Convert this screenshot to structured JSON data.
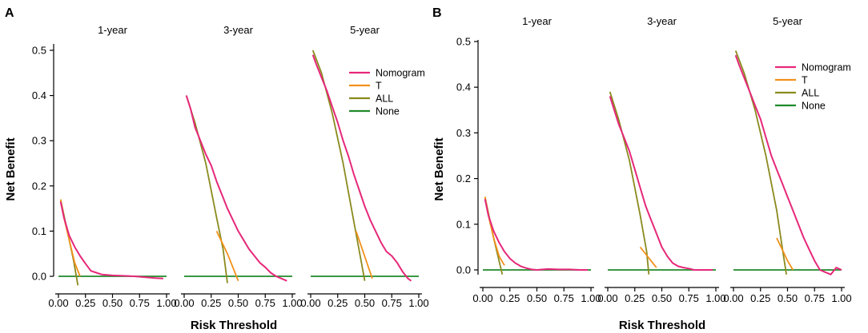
{
  "chart_data": [
    {
      "type": "line",
      "panel_label": "A",
      "ylabel": "Net Benefit",
      "xlabel": "Risk Threshold",
      "ylim": [
        0,
        0.5
      ],
      "xlim": [
        0,
        1
      ],
      "yticks": [
        "0.0",
        "0.1",
        "0.2",
        "0.3",
        "0.4",
        "0.5"
      ],
      "xticks": [
        "0.00",
        "0.25",
        "0.50",
        "0.75",
        "1.00"
      ],
      "legend": [
        "Nomogram",
        "T",
        "ALL",
        "None"
      ],
      "legend_position": "top-right",
      "facets": [
        {
          "title": "1-year",
          "series": [
            {
              "name": "Nomogram",
              "x": [
                0.02,
                0.05,
                0.1,
                0.15,
                0.2,
                0.25,
                0.3,
                0.35,
                0.4,
                0.5,
                0.6,
                0.7,
                0.8,
                0.9,
                0.97
              ],
              "y": [
                0.165,
                0.13,
                0.09,
                0.065,
                0.045,
                0.028,
                0.012,
                0.008,
                0.004,
                0.002,
                0.001,
                0.0,
                -0.002,
                -0.004,
                -0.005
              ]
            },
            {
              "name": "T",
              "x": [
                0.02,
                0.05,
                0.1,
                0.15,
                0.2
              ],
              "y": [
                0.17,
                0.13,
                0.08,
                0.03,
                0.0
              ]
            },
            {
              "name": "ALL",
              "x": [
                0.02,
                0.06,
                0.1,
                0.14,
                0.18
              ],
              "y": [
                0.17,
                0.125,
                0.08,
                0.035,
                -0.02
              ]
            },
            {
              "name": "None",
              "x": [
                0.0,
                1.0
              ],
              "y": [
                0.0,
                0.0
              ]
            }
          ]
        },
        {
          "title": "3-year",
          "series": [
            {
              "name": "Nomogram",
              "x": [
                0.02,
                0.06,
                0.1,
                0.15,
                0.2,
                0.25,
                0.3,
                0.35,
                0.4,
                0.45,
                0.5,
                0.55,
                0.6,
                0.65,
                0.7,
                0.75,
                0.8,
                0.85,
                0.9,
                0.95
              ],
              "y": [
                0.4,
                0.37,
                0.33,
                0.3,
                0.27,
                0.245,
                0.21,
                0.18,
                0.15,
                0.125,
                0.1,
                0.08,
                0.06,
                0.045,
                0.03,
                0.02,
                0.008,
                0.0,
                -0.005,
                -0.01
              ]
            },
            {
              "name": "T",
              "x": [
                0.3,
                0.35,
                0.4,
                0.45,
                0.5
              ],
              "y": [
                0.1,
                0.075,
                0.05,
                0.02,
                -0.01
              ]
            },
            {
              "name": "ALL",
              "x": [
                0.02,
                0.1,
                0.2,
                0.3,
                0.36,
                0.4
              ],
              "y": [
                0.4,
                0.34,
                0.25,
                0.13,
                0.06,
                -0.015
              ]
            },
            {
              "name": "None",
              "x": [
                0.0,
                1.0
              ],
              "y": [
                0.0,
                0.0
              ]
            }
          ]
        },
        {
          "title": "5-year",
          "series": [
            {
              "name": "Nomogram",
              "x": [
                0.02,
                0.05,
                0.1,
                0.15,
                0.2,
                0.25,
                0.3,
                0.35,
                0.4,
                0.45,
                0.5,
                0.55,
                0.6,
                0.65,
                0.7,
                0.75,
                0.8,
                0.85,
                0.9,
                0.93
              ],
              "y": [
                0.49,
                0.47,
                0.44,
                0.41,
                0.375,
                0.34,
                0.3,
                0.265,
                0.225,
                0.19,
                0.155,
                0.125,
                0.1,
                0.075,
                0.055,
                0.045,
                0.03,
                0.01,
                -0.005,
                -0.01
              ]
            },
            {
              "name": "T",
              "x": [
                0.42,
                0.47,
                0.52,
                0.57
              ],
              "y": [
                0.1,
                0.065,
                0.03,
                -0.005
              ]
            },
            {
              "name": "ALL",
              "x": [
                0.02,
                0.1,
                0.2,
                0.3,
                0.4,
                0.47,
                0.5
              ],
              "y": [
                0.5,
                0.45,
                0.36,
                0.25,
                0.12,
                0.03,
                -0.01
              ]
            },
            {
              "name": "None",
              "x": [
                0.0,
                1.0
              ],
              "y": [
                0.0,
                0.0
              ]
            }
          ]
        }
      ]
    },
    {
      "type": "line",
      "panel_label": "B",
      "ylabel": "Net Benefit",
      "xlabel": "Risk Threshold",
      "ylim": [
        0,
        0.5
      ],
      "xlim": [
        0,
        1
      ],
      "yticks": [
        "0.0",
        "0.1",
        "0.2",
        "0.3",
        "0.4",
        "0.5"
      ],
      "xticks": [
        "0.00",
        "0.25",
        "0.50",
        "0.75",
        "1.00"
      ],
      "legend": [
        "Nomogram",
        "T",
        "ALL",
        "None"
      ],
      "legend_position": "top-right",
      "facets": [
        {
          "title": "1-year",
          "series": [
            {
              "name": "Nomogram",
              "x": [
                0.02,
                0.05,
                0.1,
                0.15,
                0.2,
                0.25,
                0.3,
                0.35,
                0.4,
                0.45,
                0.5,
                0.6,
                0.7,
                0.8,
                0.9,
                0.97
              ],
              "y": [
                0.155,
                0.12,
                0.085,
                0.06,
                0.04,
                0.025,
                0.015,
                0.008,
                0.004,
                0.001,
                0.0,
                0.002,
                0.001,
                0.001,
                0.0,
                0.0
              ]
            },
            {
              "name": "T",
              "x": [
                0.02,
                0.06,
                0.1,
                0.15,
                0.2
              ],
              "y": [
                0.16,
                0.11,
                0.07,
                0.03,
                0.01
              ]
            },
            {
              "name": "ALL",
              "x": [
                0.02,
                0.06,
                0.1,
                0.14,
                0.18
              ],
              "y": [
                0.16,
                0.115,
                0.07,
                0.03,
                -0.01
              ]
            },
            {
              "name": "None",
              "x": [
                0.0,
                1.0
              ],
              "y": [
                0.0,
                0.0
              ]
            }
          ]
        },
        {
          "title": "3-year",
          "series": [
            {
              "name": "Nomogram",
              "x": [
                0.02,
                0.06,
                0.1,
                0.15,
                0.2,
                0.25,
                0.3,
                0.35,
                0.4,
                0.45,
                0.5,
                0.55,
                0.6,
                0.65,
                0.7,
                0.75,
                0.8,
                0.9,
                0.97
              ],
              "y": [
                0.38,
                0.35,
                0.32,
                0.29,
                0.26,
                0.22,
                0.18,
                0.14,
                0.11,
                0.08,
                0.05,
                0.03,
                0.015,
                0.008,
                0.005,
                0.003,
                0.0,
                0.0,
                0.0
              ]
            },
            {
              "name": "T",
              "x": [
                0.3,
                0.35,
                0.4,
                0.45
              ],
              "y": [
                0.05,
                0.035,
                0.02,
                0.005
              ]
            },
            {
              "name": "ALL",
              "x": [
                0.02,
                0.1,
                0.2,
                0.3,
                0.36,
                0.38
              ],
              "y": [
                0.39,
                0.33,
                0.24,
                0.12,
                0.04,
                -0.01
              ]
            },
            {
              "name": "None",
              "x": [
                0.0,
                1.0
              ],
              "y": [
                0.0,
                0.0
              ]
            }
          ]
        },
        {
          "title": "5-year",
          "series": [
            {
              "name": "Nomogram",
              "x": [
                0.02,
                0.05,
                0.1,
                0.15,
                0.2,
                0.25,
                0.3,
                0.35,
                0.4,
                0.45,
                0.5,
                0.55,
                0.6,
                0.65,
                0.7,
                0.75,
                0.8,
                0.85,
                0.9,
                0.95,
                1.0
              ],
              "y": [
                0.47,
                0.45,
                0.42,
                0.39,
                0.36,
                0.33,
                0.29,
                0.25,
                0.22,
                0.19,
                0.16,
                0.13,
                0.1,
                0.07,
                0.045,
                0.02,
                0.0,
                -0.005,
                -0.01,
                0.005,
                0.0
              ]
            },
            {
              "name": "T",
              "x": [
                0.4,
                0.45,
                0.5,
                0.55
              ],
              "y": [
                0.07,
                0.045,
                0.02,
                0.0
              ]
            },
            {
              "name": "ALL",
              "x": [
                0.02,
                0.1,
                0.2,
                0.3,
                0.4,
                0.45,
                0.49
              ],
              "y": [
                0.48,
                0.43,
                0.35,
                0.25,
                0.13,
                0.05,
                -0.01
              ]
            },
            {
              "name": "None",
              "x": [
                0.0,
                1.0
              ],
              "y": [
                0.0,
                0.0
              ]
            }
          ]
        }
      ]
    }
  ],
  "colors": {
    "Nomogram": "#e6287a",
    "T": "#f2911b",
    "ALL": "#8a8a1e",
    "None": "#1f8a2a"
  }
}
